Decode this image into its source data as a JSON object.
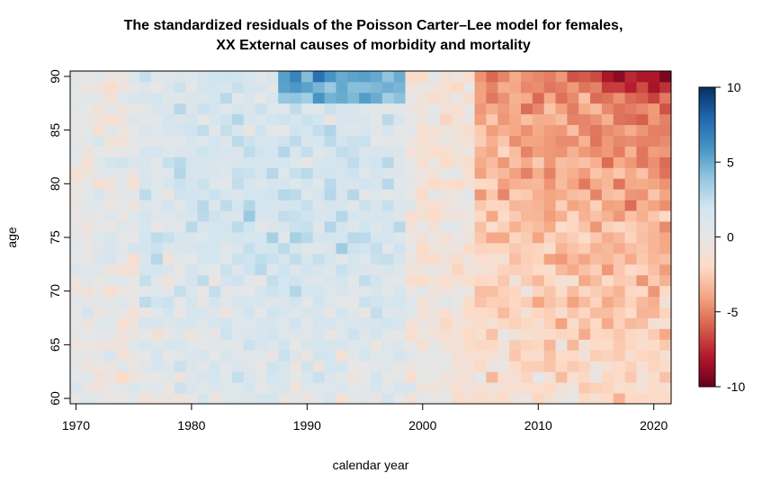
{
  "chart_data": {
    "type": "heatmap",
    "title_lines": [
      "The standardized residuals of the Poisson Carter–Lee model for females,",
      "XX External causes of morbidity and mortality"
    ],
    "xlabel": "calendar year",
    "ylabel": "age",
    "x_range": [
      1969.5,
      2021.5
    ],
    "y_range": [
      59.5,
      90.5
    ],
    "x_ticks": [
      1970,
      1980,
      1990,
      2000,
      2010,
      2020
    ],
    "y_ticks": [
      60,
      65,
      70,
      75,
      80,
      85,
      90
    ],
    "years_start": 1970,
    "years_end": 2021,
    "ages_start": 60,
    "ages_end": 90,
    "colorbar": {
      "min": -10,
      "max": 10,
      "ticks": [
        10,
        5,
        0,
        -5,
        -10
      ],
      "colors": [
        "#67001f",
        "#b2182b",
        "#d6604d",
        "#f4a582",
        "#fddbc7",
        "#e6e6e6",
        "#d1e5f0",
        "#92c5de",
        "#4393c3",
        "#2166ac",
        "#053061"
      ]
    },
    "residual_pattern": {
      "description_note": "cell values estimated from the color field",
      "early_period_mean_by_age": {
        "60": 0.5,
        "75": 2.0,
        "90": 1.5
      },
      "late_period_mean_by_age": {
        "60": -1.5,
        "75": -3.0,
        "90": -5.0
      },
      "peak_positive": {
        "year": 1991,
        "age": 90,
        "value": 7.5
      },
      "peak_negative": {
        "year": 2021,
        "age": 90,
        "value": -9.5
      }
    }
  }
}
